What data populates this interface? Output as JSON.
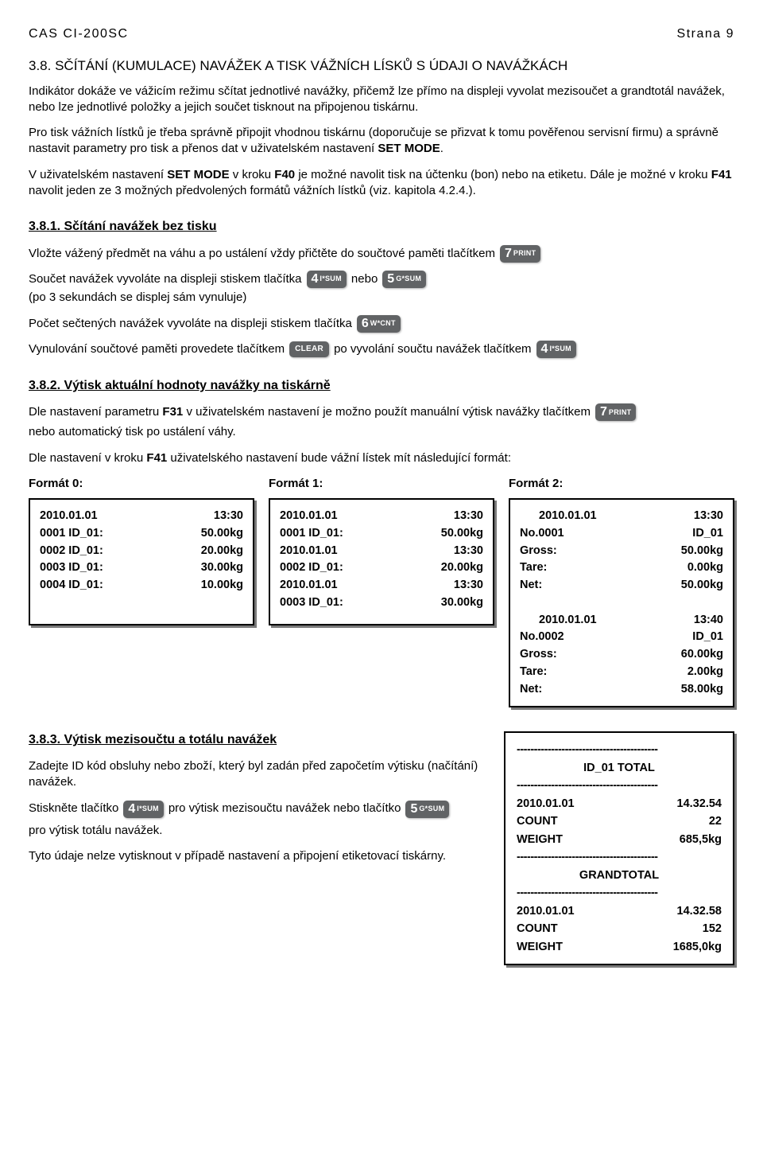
{
  "header": {
    "left": "CAS CI-200SC",
    "right": "Strana 9"
  },
  "s38": {
    "title_pre": "3.8. SČÍTÁNÍ (KUMULACE) NAVÁŽEK A TISK VÁŽNÍCH LÍSKŮ S ÚDAJI O NAVÁŽKÁCH",
    "p1": "Indikátor dokáže ve vážicím režimu sčítat jednotlivé navážky, přičemž lze přímo na displeji vyvolat mezisoučet a grandtotál navážek, nebo lze jednotlivé položky a jejich součet tisknout na připojenou tiskárnu.",
    "p2a": "Pro tisk vážních lístků je třeba správně připojit vhodnou tiskárnu (doporučuje se přizvat k tomu pověřenou servisní firmu) a správně nastavit parametry pro tisk a přenos dat v uživatelském nastavení ",
    "p2b": "SET MODE",
    "p2c": ".",
    "p3a": "V uživatelském nastavení ",
    "p3b": "SET MODE",
    "p3c": " v kroku ",
    "p3d": "F40",
    "p3e": " je možné navolit tisk na účtenku (bon) nebo na etiketu. Dále je možné v kroku ",
    "p3f": "F41",
    "p3g": " navolit jeden ze 3 možných předvolených formátů vážních lístků (viz. kapitola 4.2.4.)."
  },
  "s381": {
    "title": "3.8.1. Sčítání navážek bez tisku",
    "l1": "Vložte vážený předmět na váhu a po ustálení vždy přičtěte do součtové paměti tlačítkem",
    "l2a": "Součet navážek vyvoláte na displeji stiskem tlačítka",
    "l2b": "nebo",
    "l2_sub": "(po 3 sekundách se displej sám vynuluje)",
    "l3": "Počet sečtených navážek vyvoláte na displeji stiskem tlačítka",
    "l4a": "Vynulování součtové paměti provedete tlačítkem",
    "l4b": "po vyvolání součtu navážek tlačítkem"
  },
  "keys": {
    "k7": {
      "num": "7",
      "lbl": "PRINT"
    },
    "k4": {
      "num": "4",
      "lbl": "I*SUM"
    },
    "k5": {
      "num": "5",
      "lbl": "G*SUM"
    },
    "k6": {
      "num": "6",
      "lbl": "W*CNT"
    },
    "clear": {
      "lbl": "CLEAR"
    }
  },
  "s382": {
    "title": "3.8.2. Výtisk aktuální hodnoty navážky na tiskárně",
    "p1a": "Dle nastavení parametru ",
    "p1b": "F31",
    "p1c": " v uživatelském nastavení je možno použít manuální výtisk navážky tlačítkem",
    "p1d": "nebo automatický tisk po ustálení váhy.",
    "p2a": "Dle nastavení v kroku ",
    "p2b": "F41",
    "p2c": " uživatelského nastavení bude vážní lístek mít následující formát:",
    "label0": "Formát 0:",
    "label1": "Formát 1:",
    "label2": "Formát 2:"
  },
  "receipts": {
    "f0": [
      {
        "l": "2010.01.01",
        "r": "13:30"
      },
      {
        "l": "0001 ID_01:",
        "r": "50.00kg"
      },
      {
        "l": "0002 ID_01:",
        "r": "20.00kg"
      },
      {
        "l": "0003 ID_01:",
        "r": "30.00kg"
      },
      {
        "l": "0004 ID_01:",
        "r": "10.00kg"
      }
    ],
    "f1": [
      {
        "l": "2010.01.01",
        "r": "13:30"
      },
      {
        "l": "0001 ID_01:",
        "r": "50.00kg"
      },
      {
        "l": "2010.01.01",
        "r": "13:30"
      },
      {
        "l": "0002 ID_01:",
        "r": "20.00kg"
      },
      {
        "l": "2010.01.01",
        "r": "13:30"
      },
      {
        "l": "0003 ID_01:",
        "r": "30.00kg"
      }
    ],
    "f2": [
      {
        "l": "2010.01.01",
        "r": "13:30",
        "indent": true
      },
      {
        "l": "No.0001",
        "r": "ID_01"
      },
      {
        "l": "Gross:",
        "r": "50.00kg"
      },
      {
        "l": "Tare:",
        "r": "0.00kg"
      },
      {
        "l": "Net:",
        "r": "50.00kg"
      },
      {
        "l": " ",
        "r": " "
      },
      {
        "l": "2010.01.01",
        "r": "13:40",
        "indent": true
      },
      {
        "l": "No.0002",
        "r": "ID_01"
      },
      {
        "l": "Gross:",
        "r": "60.00kg"
      },
      {
        "l": "Tare:",
        "r": "2.00kg"
      },
      {
        "l": "Net:",
        "r": "58.00kg"
      }
    ]
  },
  "s383": {
    "title": "3.8.3. Výtisk mezisoučtu a totálu navážek",
    "p1": "Zadejte ID kód obsluhy nebo zboží, který byl zadán před započetím výtisku (načítání) navážek.",
    "l2a": "Stiskněte tlačítko",
    "l2b": "pro výtisk mezisoučtu navážek nebo tlačítko",
    "l2c": "pro výtisk totálu navážek.",
    "p3": "Tyto údaje nelze vytisknout v případě nastavení a připojení etiketovací tiskárny."
  },
  "totalbox": {
    "dash": "-----------------------------------------",
    "t1": "ID_01 TOTAL",
    "d1": "2010.01.01",
    "tm1": "14.32.54",
    "cnt": "COUNT",
    "cntv1": "22",
    "wt": "WEIGHT",
    "wtv1": "685,5kg",
    "t2": "GRANDTOTAL",
    "d2": "2010.01.01",
    "tm2": "14.32.58",
    "cntv2": "152",
    "wtv2": "1685,0kg"
  },
  "colors": {
    "key_bg": "#616365",
    "key_fg": "#ffffff",
    "text": "#000000",
    "shadow": "#7a7a7a"
  }
}
